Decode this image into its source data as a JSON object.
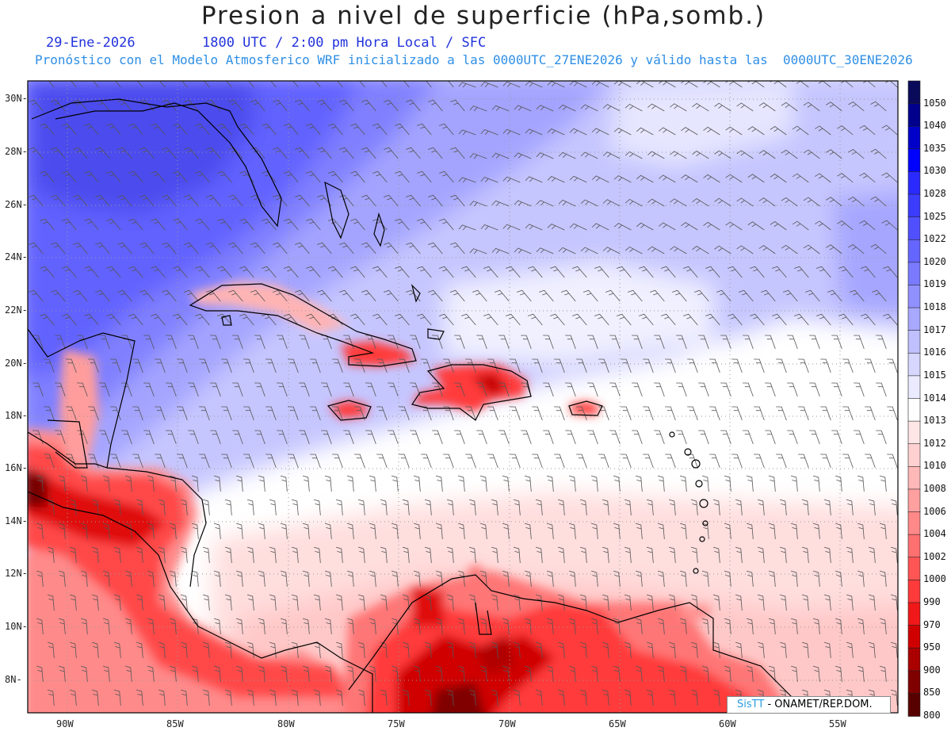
{
  "title": "Presion a nivel de superficie (hPa,somb.)",
  "date_label": "29-Ene-2026",
  "time_label": "1800 UTC / 2:00 pm Hora Local / SFC",
  "forecast_label": "Pronóstico con el Modelo Atmosferico WRF inicializado a las 0000UTC_27ENE2026 y válido hasta las  0000UTC_30ENE2026",
  "lat_labels": [
    "30N",
    "28N",
    "26N",
    "24N",
    "22N",
    "20N",
    "18N",
    "16N",
    "14N",
    "12N",
    "10N",
    "8N"
  ],
  "lon_labels": [
    "90W",
    "85W",
    "80W",
    "75W",
    "70W",
    "65W",
    "60W",
    "55W"
  ],
  "colorbar": {
    "levels": [
      "1050",
      "1040",
      "1035",
      "1030",
      "1028",
      "1025",
      "1022",
      "1020",
      "1019",
      "1018",
      "1017",
      "1016",
      "1015",
      "1014",
      "1013",
      "1012",
      "1010",
      "1008",
      "1006",
      "1004",
      "1002",
      "1000",
      "990",
      "970",
      "950",
      "900",
      "850",
      "800"
    ],
    "colors": [
      "#0a0a5a",
      "#00008c",
      "#0000c8",
      "#0000ff",
      "#2a2aff",
      "#3c3cff",
      "#5050ff",
      "#6565ff",
      "#7a7aff",
      "#9090ff",
      "#a8a8ff",
      "#c0c0ff",
      "#d6d6ff",
      "#ebebff",
      "#ffffff",
      "#ffe6e6",
      "#ffd0d0",
      "#ffb8b8",
      "#ffa0a0",
      "#ff8888",
      "#ff7070",
      "#ff5555",
      "#ff3a3a",
      "#f01818",
      "#d00000",
      "#aa0000",
      "#800000",
      "#580000"
    ]
  },
  "credit": {
    "brand": "SisTT",
    "text": "- ONAMET/REP.DOM."
  }
}
